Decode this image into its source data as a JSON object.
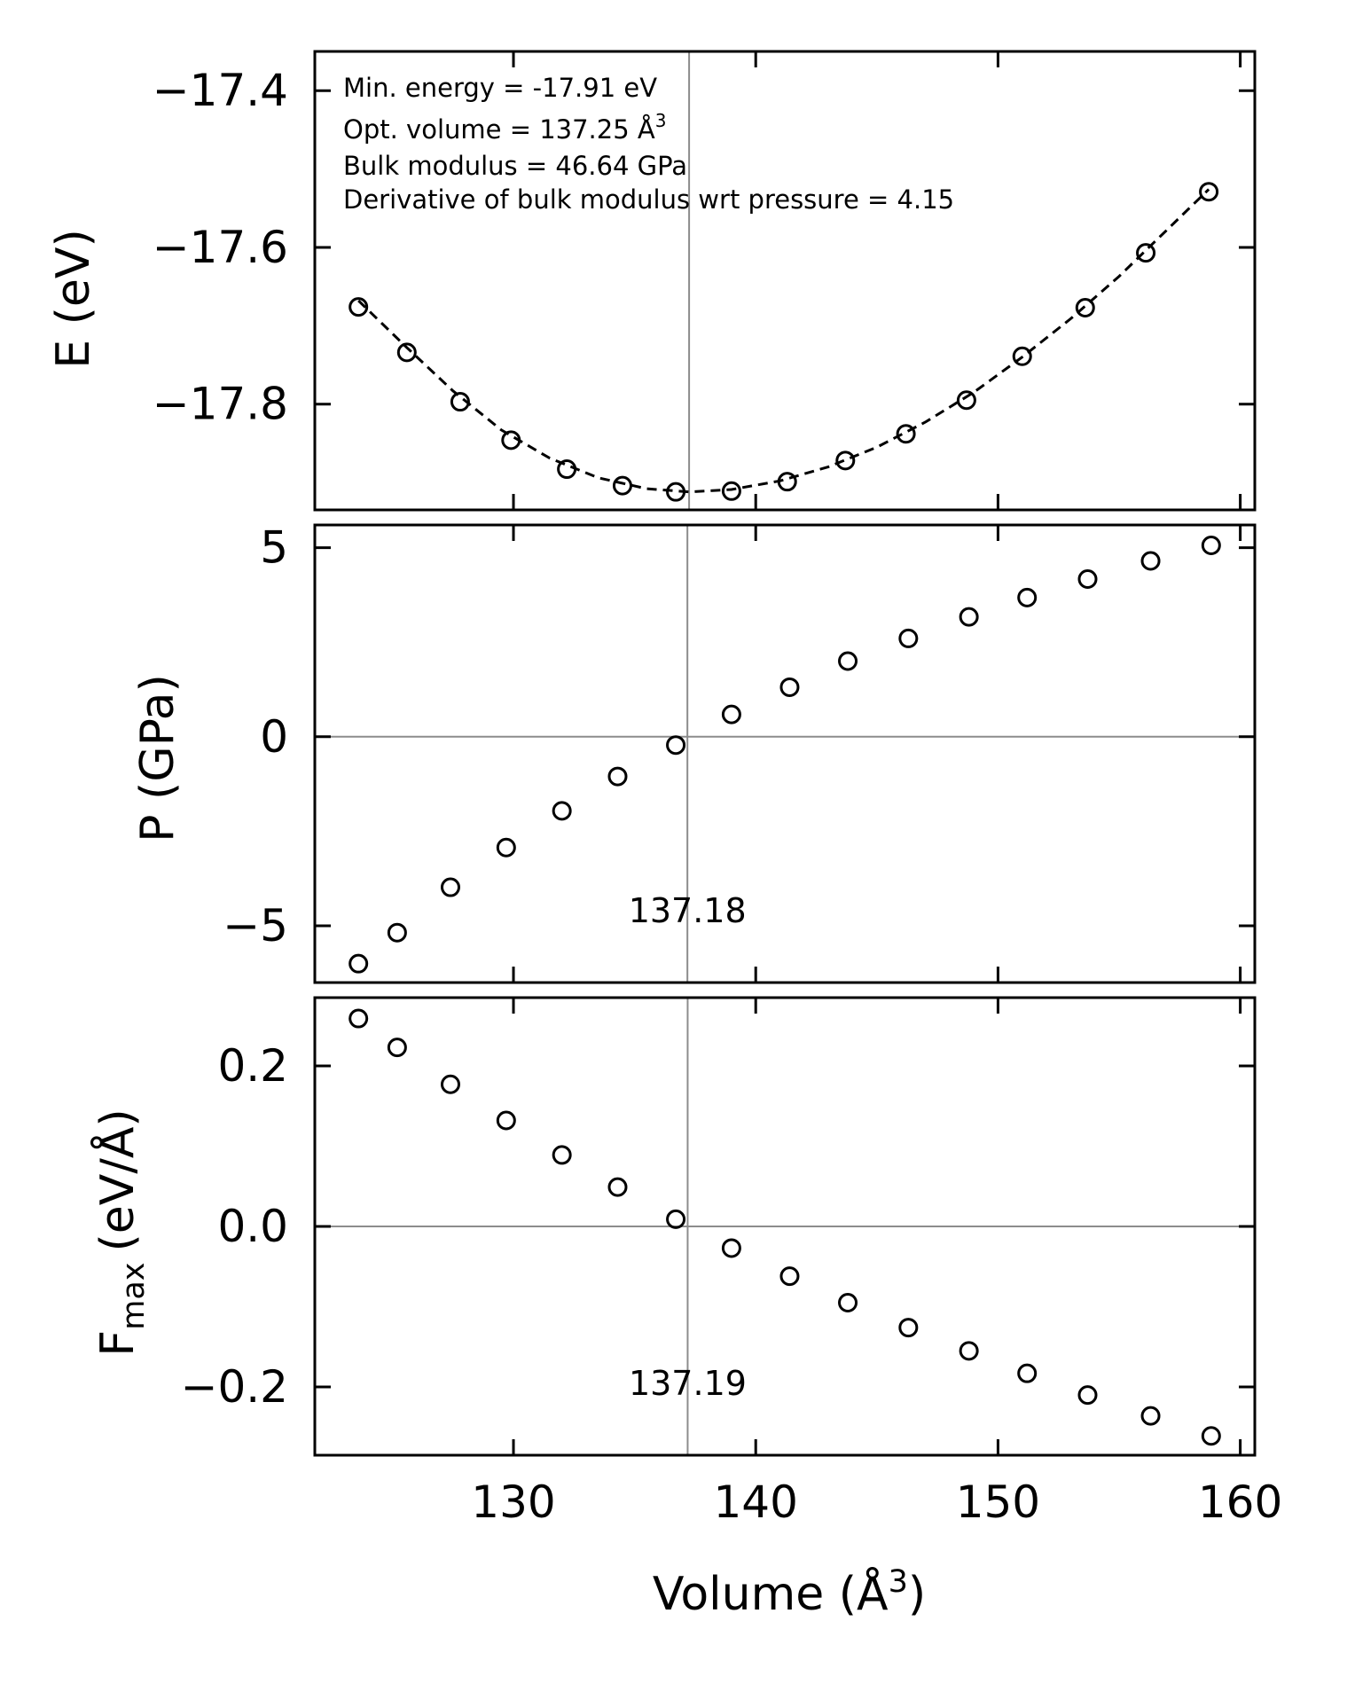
{
  "chart_data": [
    {
      "type": "scatter",
      "panel": "energy",
      "ylabel": "E (eV)",
      "xlim": [
        121.8,
        160.6
      ],
      "ylim": [
        -17.935,
        -17.35
      ],
      "yticks": [
        -17.4,
        -17.6,
        -17.8
      ],
      "ytick_labels": [
        "−17.4",
        "−17.6",
        "−17.8"
      ],
      "xticks": [
        130,
        140,
        150,
        160
      ],
      "vline": 137.25,
      "series": [
        {
          "name": "E",
          "marker": "open-circle",
          "x": [
            123.6,
            125.6,
            127.8,
            129.9,
            132.2,
            134.5,
            136.7,
            139.0,
            141.3,
            143.7,
            146.2,
            148.7,
            151.0,
            153.6,
            156.1,
            158.7
          ],
          "y": [
            -17.676,
            -17.734,
            -17.797,
            -17.846,
            -17.883,
            -17.904,
            -17.912,
            -17.911,
            -17.899,
            -17.872,
            -17.838,
            -17.795,
            -17.739,
            -17.677,
            -17.607,
            -17.529
          ]
        },
        {
          "name": "fit",
          "style": "dashed",
          "x": [
            123.6,
            125.5,
            127.5,
            129.5,
            131.5,
            133.5,
            135.5,
            137.25,
            139.0,
            141.0,
            143.0,
            145.0,
            147.0,
            149.0,
            151.0,
            153.0,
            155.0,
            157.0,
            158.7
          ],
          "y": [
            -17.668,
            -17.725,
            -17.783,
            -17.833,
            -17.869,
            -17.894,
            -17.908,
            -17.912,
            -17.909,
            -17.898,
            -17.88,
            -17.855,
            -17.823,
            -17.785,
            -17.74,
            -17.691,
            -17.637,
            -17.577,
            -17.526
          ]
        }
      ],
      "annotations": [
        "Min. energy = -17.91 eV",
        "Opt. volume = 137.25 Å",
        "Bulk modulus = 46.64 GPa",
        "Derivative of bulk modulus wrt pressure = 4.15"
      ],
      "annotation_superscript": "3"
    },
    {
      "type": "scatter",
      "panel": "pressure",
      "ylabel": "P (GPa)",
      "xlim": [
        121.8,
        160.6
      ],
      "ylim": [
        -6.5,
        5.6
      ],
      "yticks": [
        5,
        0,
        -5
      ],
      "ytick_labels": [
        "5",
        "0",
        "−5"
      ],
      "xticks": [
        130,
        140,
        150,
        160
      ],
      "hline": 0,
      "vline": 137.18,
      "vline_label": "137.18",
      "series": [
        {
          "name": "P",
          "marker": "open-circle",
          "x": [
            123.6,
            125.2,
            127.4,
            129.7,
            132.0,
            134.3,
            136.7,
            139.0,
            141.4,
            143.8,
            146.3,
            148.8,
            151.2,
            153.7,
            156.3,
            158.8
          ],
          "y": [
            -6.0,
            -5.18,
            -3.98,
            -2.93,
            -1.96,
            -1.05,
            -0.22,
            0.59,
            1.31,
            2.0,
            2.6,
            3.17,
            3.68,
            4.17,
            4.65,
            5.06
          ]
        }
      ]
    },
    {
      "type": "scatter",
      "panel": "force",
      "ylabel": "F",
      "ylabel_subscript": "max",
      "ylabel_units": "(eV/Å)",
      "xlabel": "Volume (Å",
      "xlabel_superscript": "3",
      "xlabel_close": ")",
      "xlim": [
        121.8,
        160.6
      ],
      "ylim": [
        -0.285,
        0.285
      ],
      "yticks": [
        0.2,
        0.0,
        -0.2
      ],
      "ytick_labels": [
        "0.2",
        "0.0",
        "−0.2"
      ],
      "xticks": [
        130,
        140,
        150,
        160
      ],
      "xtick_labels": [
        "130",
        "140",
        "150",
        "160"
      ],
      "hline": 0,
      "vline": 137.19,
      "vline_label": "137.19",
      "series": [
        {
          "name": "Fmax",
          "marker": "open-circle",
          "x": [
            123.6,
            125.2,
            127.4,
            129.7,
            132.0,
            134.3,
            136.7,
            139.0,
            141.4,
            143.8,
            146.3,
            148.8,
            151.2,
            153.7,
            156.3,
            158.8
          ],
          "y": [
            0.259,
            0.223,
            0.177,
            0.132,
            0.089,
            0.049,
            0.009,
            -0.027,
            -0.062,
            -0.095,
            -0.126,
            -0.155,
            -0.183,
            -0.21,
            -0.236,
            -0.261
          ]
        }
      ]
    }
  ]
}
